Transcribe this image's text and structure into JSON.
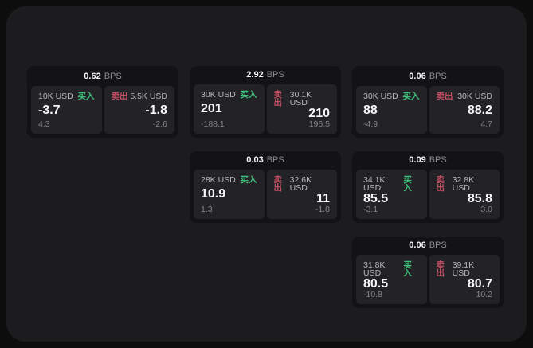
{
  "labels": {
    "bps": "BPS",
    "buy": "买入",
    "sell": "卖出"
  },
  "colors": {
    "buy": "#3fc07a",
    "sell": "#c34f63",
    "surface": "#1c1c1e",
    "card": "#131315",
    "panel": "#232327"
  },
  "cards": [
    {
      "bps": "0.62",
      "row": 1,
      "col": 1,
      "buy": {
        "amount": "10K USD",
        "value": "-3.7",
        "delta": "4.3"
      },
      "sell": {
        "amount": "5.5K USD",
        "value": "-1.8",
        "delta": "-2.6"
      }
    },
    {
      "bps": "2.92",
      "row": 1,
      "col": 2,
      "buy": {
        "amount": "30K USD",
        "value": "201",
        "delta": "-188.1"
      },
      "sell": {
        "amount": "30.1K USD",
        "value": "210",
        "delta": "196.5"
      }
    },
    {
      "bps": "0.06",
      "row": 1,
      "col": 3,
      "buy": {
        "amount": "30K USD",
        "value": "88",
        "delta": "-4.9"
      },
      "sell": {
        "amount": "30K USD",
        "value": "88.2",
        "delta": "4.7"
      }
    },
    {
      "bps": "0.03",
      "row": 2,
      "col": 2,
      "buy": {
        "amount": "28K USD",
        "value": "10.9",
        "delta": "1.3"
      },
      "sell": {
        "amount": "32.6K USD",
        "value": "11",
        "delta": "-1.8"
      }
    },
    {
      "bps": "0.09",
      "row": 2,
      "col": 3,
      "buy": {
        "amount": "34.1K USD",
        "value": "85.5",
        "delta": "-3.1"
      },
      "sell": {
        "amount": "32.8K USD",
        "value": "85.8",
        "delta": "3.0"
      }
    },
    {
      "bps": "0.06",
      "row": 3,
      "col": 3,
      "buy": {
        "amount": "31.8K USD",
        "value": "80.5",
        "delta": "-10.8"
      },
      "sell": {
        "amount": "39.1K USD",
        "value": "80.7",
        "delta": "10.2"
      }
    }
  ]
}
